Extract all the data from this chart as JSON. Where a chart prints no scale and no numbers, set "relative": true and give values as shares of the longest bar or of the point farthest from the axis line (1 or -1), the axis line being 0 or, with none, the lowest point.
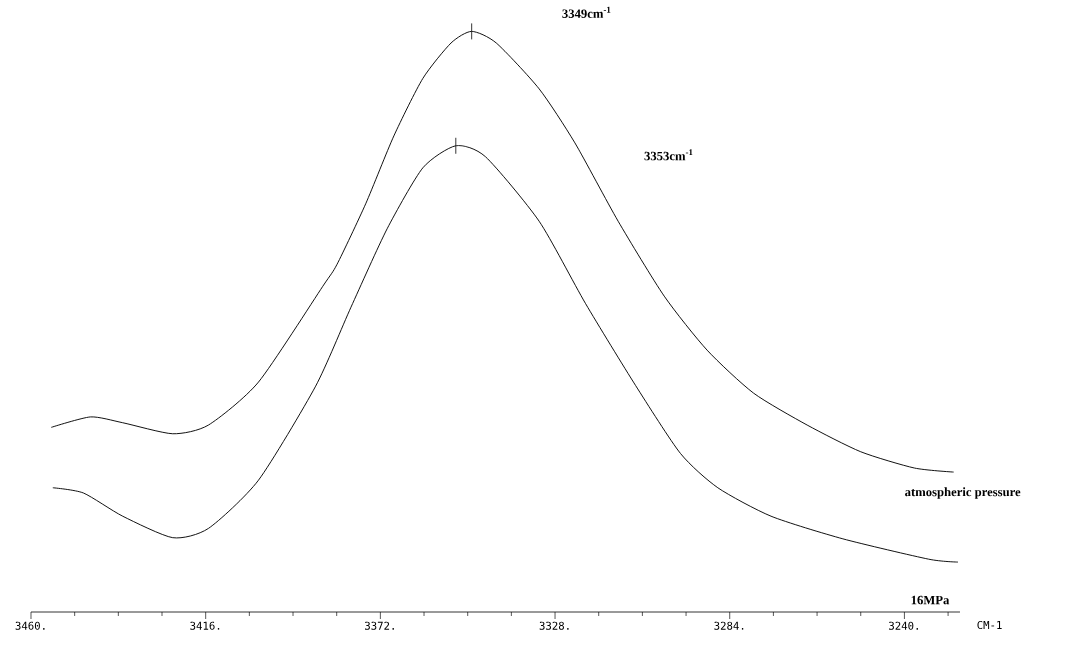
{
  "chart_data": {
    "type": "line",
    "relative": true,
    "xlabel": "CM-1",
    "xlim": [
      3460,
      3226
    ],
    "xticks": [
      {
        "value": 3460,
        "label": "3460."
      },
      {
        "value": 3449,
        "label": null
      },
      {
        "value": 3438,
        "label": null
      },
      {
        "value": 3427,
        "label": null
      },
      {
        "value": 3416,
        "label": "3416."
      },
      {
        "value": 3405,
        "label": null
      },
      {
        "value": 3394,
        "label": null
      },
      {
        "value": 3383,
        "label": null
      },
      {
        "value": 3372,
        "label": "3372."
      },
      {
        "value": 3361,
        "label": null
      },
      {
        "value": 3350,
        "label": null
      },
      {
        "value": 3339,
        "label": null
      },
      {
        "value": 3328,
        "label": "3328."
      },
      {
        "value": 3317,
        "label": null
      },
      {
        "value": 3306,
        "label": null
      },
      {
        "value": 3295,
        "label": null
      },
      {
        "value": 3284,
        "label": "3284."
      },
      {
        "value": 3273,
        "label": null
      },
      {
        "value": 3262,
        "label": null
      },
      {
        "value": 3251,
        "label": null
      },
      {
        "value": 3240,
        "label": "3240."
      },
      {
        "value": 3229,
        "label": null
      }
    ],
    "series": [
      {
        "name": "atmospheric pressure",
        "color": "#000000",
        "x": [
          3454.9,
          3445.0,
          3436.9,
          3424.3,
          3415.3,
          3402.7,
          3386.5,
          3382.9,
          3375.7,
          3368.6,
          3361.3,
          3354.2,
          3349,
          3342.8,
          3332.0,
          3323.0,
          3312.1,
          3300.5,
          3289.7,
          3278.0,
          3264.5,
          3251.0,
          3237.5,
          3227.6
        ],
        "values": [
          0.318,
          0.336,
          0.326,
          0.307,
          0.322,
          0.396,
          0.561,
          0.599,
          0.703,
          0.82,
          0.919,
          0.98,
          1.0,
          0.98,
          0.901,
          0.808,
          0.673,
          0.544,
          0.451,
          0.377,
          0.322,
          0.276,
          0.248,
          0.241
        ]
      },
      {
        "name": "16MPa",
        "color": "#000000",
        "x": [
          3454.5,
          3446.8,
          3436.9,
          3424.3,
          3415.3,
          3402.7,
          3388.3,
          3379.4,
          3370.3,
          3361.3,
          3353,
          3345.5,
          3332.0,
          3320.3,
          3307.7,
          3296.4,
          3287.0,
          3273.6,
          3255.5,
          3233.9,
          3226.5
        ],
        "values": [
          0.214,
          0.205,
          0.165,
          0.128,
          0.144,
          0.227,
          0.389,
          0.525,
          0.66,
          0.765,
          0.803,
          0.784,
          0.673,
          0.531,
          0.39,
          0.273,
          0.214,
          0.165,
          0.126,
          0.091,
          0.086
        ]
      }
    ],
    "annotations": [
      {
        "text": "3349cm$^{-1}$",
        "x": 3349,
        "y": 1.0
      },
      {
        "text": "3353cm$^{-1}$",
        "x": 3353,
        "y": 0.803
      }
    ]
  }
}
